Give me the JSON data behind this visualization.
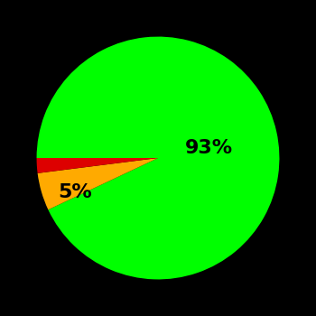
{
  "slices": [
    93,
    5,
    2
  ],
  "colors": [
    "#00ff00",
    "#ffaa00",
    "#dd0000"
  ],
  "labels": [
    "93%",
    "5%",
    ""
  ],
  "background_color": "#000000",
  "text_color": "#000000",
  "startangle": 180,
  "figsize": [
    3.5,
    3.5
  ],
  "dpi": 100
}
